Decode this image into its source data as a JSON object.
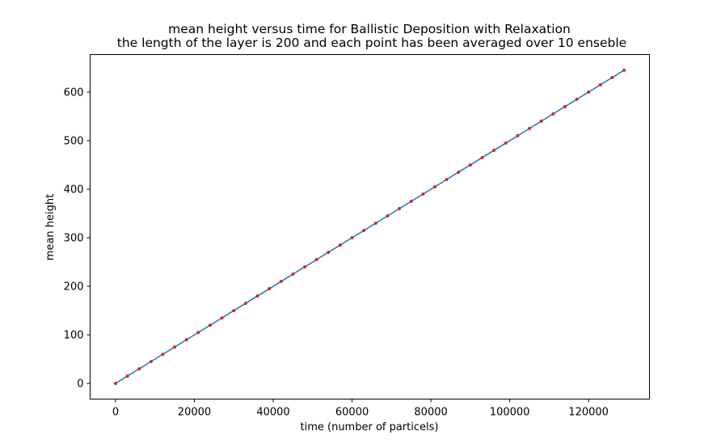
{
  "chart_data": {
    "type": "line",
    "title": "mean height versus time for Ballistic Deposition with Relaxation",
    "subtitle": "the length of the layer is 200 and each point has been averaged over 10 enseble",
    "xlabel": "time (number of particels)",
    "ylabel": "mean height",
    "xlim": [
      -6450,
      135450
    ],
    "ylim": [
      -32.25,
      677.25
    ],
    "xticks": [
      0,
      20000,
      40000,
      60000,
      80000,
      100000,
      120000
    ],
    "yticks": [
      0,
      100,
      200,
      300,
      400,
      500,
      600
    ],
    "grid": false,
    "legend": "none",
    "series": [
      {
        "style": "line",
        "color": "#1f77b4",
        "x": [
          0,
          3000,
          6000,
          9000,
          12000,
          15000,
          18000,
          21000,
          24000,
          27000,
          30000,
          33000,
          36000,
          39000,
          42000,
          45000,
          48000,
          51000,
          54000,
          57000,
          60000,
          63000,
          66000,
          69000,
          72000,
          75000,
          78000,
          81000,
          84000,
          87000,
          90000,
          93000,
          96000,
          99000,
          102000,
          105000,
          108000,
          111000,
          114000,
          117000,
          120000,
          123000,
          126000,
          129000
        ],
        "y": [
          0,
          15,
          30,
          45,
          60,
          75,
          90,
          105,
          120,
          135,
          150,
          165,
          180,
          195,
          210,
          225,
          240,
          255,
          270,
          285,
          300,
          315,
          330,
          345,
          360,
          375,
          390,
          405,
          420,
          435,
          450,
          465,
          480,
          495,
          510,
          525,
          540,
          555,
          570,
          585,
          600,
          615,
          630,
          645
        ]
      },
      {
        "style": "markers",
        "color": "#d62728",
        "x": [
          0,
          3000,
          6000,
          9000,
          12000,
          15000,
          18000,
          21000,
          24000,
          27000,
          30000,
          33000,
          36000,
          39000,
          42000,
          45000,
          48000,
          51000,
          54000,
          57000,
          60000,
          63000,
          66000,
          69000,
          72000,
          75000,
          78000,
          81000,
          84000,
          87000,
          90000,
          93000,
          96000,
          99000,
          102000,
          105000,
          108000,
          111000,
          114000,
          117000,
          120000,
          123000,
          126000,
          129000
        ],
        "y": [
          0,
          15,
          30,
          45,
          60,
          75,
          90,
          105,
          120,
          135,
          150,
          165,
          180,
          195,
          210,
          225,
          240,
          255,
          270,
          285,
          300,
          315,
          330,
          345,
          360,
          375,
          390,
          405,
          420,
          435,
          450,
          465,
          480,
          495,
          510,
          525,
          540,
          555,
          570,
          585,
          600,
          615,
          630,
          645
        ]
      }
    ]
  }
}
